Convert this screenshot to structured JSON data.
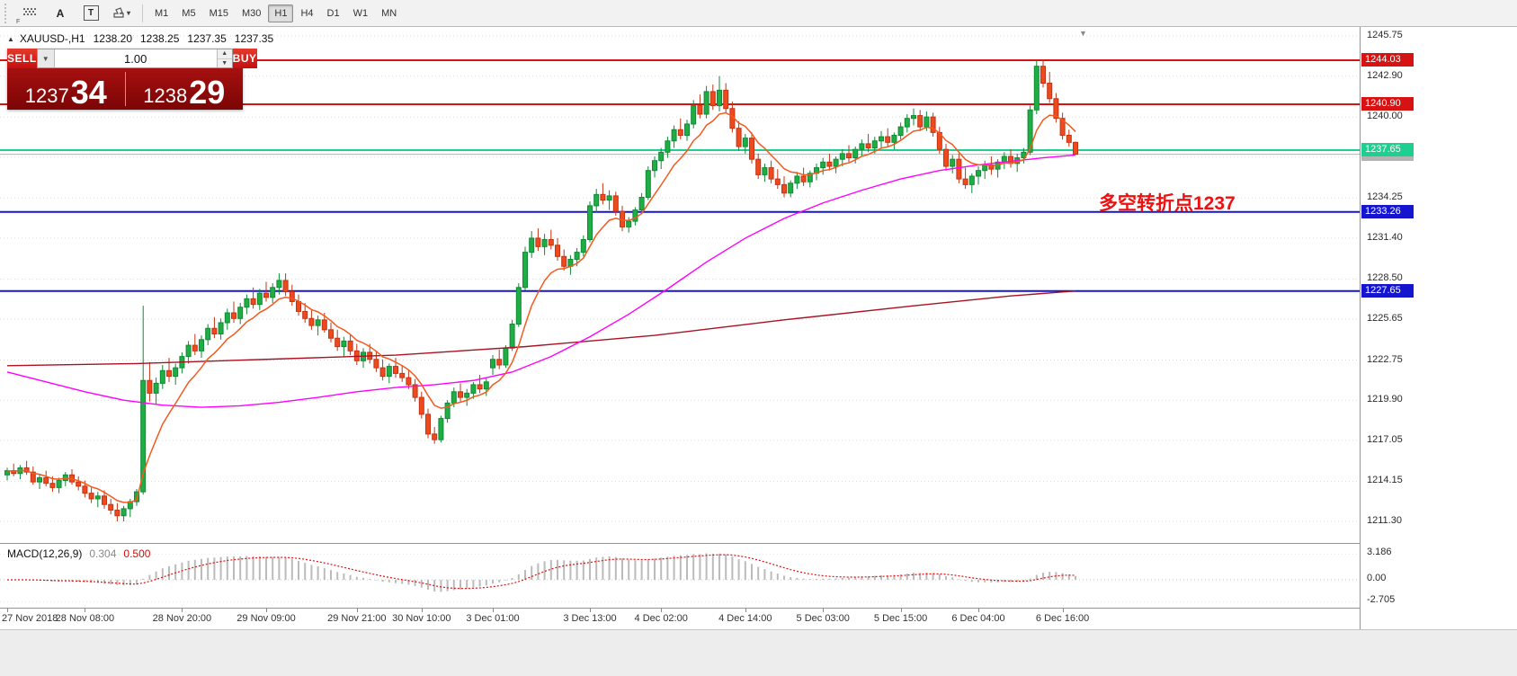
{
  "toolbar": {
    "tools": [
      {
        "name": "pattern-stamp-icon",
        "label": "",
        "sub": "F"
      },
      {
        "name": "arrow-a-tool",
        "label": "A"
      },
      {
        "name": "text-tool",
        "label": "T"
      },
      {
        "name": "draw-tool-dropdown",
        "label": "",
        "chevron": "▾"
      }
    ],
    "timeframes": [
      "M1",
      "M5",
      "M15",
      "M30",
      "H1",
      "H4",
      "D1",
      "W1",
      "MN"
    ],
    "active_timeframe": "H1"
  },
  "chart": {
    "header": {
      "expand_icon": "▲",
      "symbol": "XAUUSD-,H1",
      "open": "1238.20",
      "high": "1238.25",
      "low": "1237.35",
      "close": "1237.35"
    },
    "trade_panel": {
      "sell_label": "SELL",
      "buy_label": "BUY",
      "volume": "1.00",
      "bid_big": "1237",
      "bid_frac": "34",
      "ask_big": "1238",
      "ask_frac": "29"
    },
    "annotation": "多空转折点1237",
    "shift_marker": "▼",
    "levels": [
      {
        "price": 1244.03,
        "label": "1244.03",
        "color": "#d61212",
        "width": 2
      },
      {
        "price": 1240.9,
        "label": "1240.90",
        "color": "#d61212",
        "width": 2
      },
      {
        "price": 1237.65,
        "label": "1237.65",
        "color": "#1ecf8f",
        "width": 2
      },
      {
        "price": 1237.35,
        "label": "1237.35",
        "color": "#b4b4b4",
        "width": 1
      },
      {
        "price": 1233.26,
        "label": "1233.26",
        "color": "#1515cf",
        "width": 2
      },
      {
        "price": 1227.65,
        "label": "1227.65",
        "color": "#1515cf",
        "width": 2
      }
    ],
    "y_axis": {
      "max": 1245.75,
      "min": 1211.3,
      "ticks": [
        "1245.75",
        "1242.90",
        "1240.00",
        "1237.15",
        "1234.25",
        "1231.40",
        "1228.50",
        "1225.65",
        "1222.75",
        "1219.90",
        "1217.05",
        "1214.15",
        "1211.30"
      ]
    },
    "x_axis": {
      "labels": [
        {
          "text": "27 Nov 2018",
          "i": 0
        },
        {
          "text": "28 Nov 08:00",
          "i": 12
        },
        {
          "text": "28 Nov 20:00",
          "i": 27
        },
        {
          "text": "29 Nov 09:00",
          "i": 40
        },
        {
          "text": "29 Nov 21:00",
          "i": 54
        },
        {
          "text": "30 Nov 10:00",
          "i": 64
        },
        {
          "text": "3 Dec 01:00",
          "i": 75
        },
        {
          "text": "3 Dec 13:00",
          "i": 90
        },
        {
          "text": "4 Dec 02:00",
          "i": 101
        },
        {
          "text": "4 Dec 14:00",
          "i": 114
        },
        {
          "text": "5 Dec 03:00",
          "i": 126
        },
        {
          "text": "5 Dec 15:00",
          "i": 138
        },
        {
          "text": "6 Dec 04:00",
          "i": 150
        },
        {
          "text": "6 Dec 16:00",
          "i": 163
        }
      ]
    },
    "colors": {
      "up_fill": "#1fae45",
      "up_stroke": "#0e8a33",
      "down_fill": "#ef4a1e",
      "down_stroke": "#c23413",
      "grid": "#d9d9d9",
      "ma_fast": "#f25a1e",
      "ma_mid": "#ff00ff",
      "ma_slow": "#aa1122",
      "macd_hist": "#bbbbbb",
      "macd_signal": "#e01010"
    }
  },
  "macd": {
    "label": "MACD(12,26,9)",
    "value_main": "0.304",
    "value_signal": "0.500",
    "fast": 12,
    "slow": 26,
    "signal": 9,
    "axis_labels": [
      {
        "text": "3.186",
        "v": 3.186
      },
      {
        "text": "0.00",
        "v": 0.0
      },
      {
        "text": "-2.705",
        "v": -2.705
      }
    ]
  },
  "chart_data": {
    "type": "candlestick",
    "title": "XAUUSD- H1",
    "symbol": "XAUUSD",
    "timeframe": "H1",
    "ylim": [
      1211.3,
      1245.75
    ],
    "ma_fast_period": 8,
    "ma_mid_points": [
      [
        0,
        1221.9
      ],
      [
        6,
        1221.2
      ],
      [
        12,
        1220.5
      ],
      [
        18,
        1219.9
      ],
      [
        24,
        1219.55
      ],
      [
        30,
        1219.4
      ],
      [
        36,
        1219.5
      ],
      [
        42,
        1219.75
      ],
      [
        48,
        1220.1
      ],
      [
        54,
        1220.5
      ],
      [
        60,
        1220.8
      ],
      [
        66,
        1221.0
      ],
      [
        72,
        1221.3
      ],
      [
        78,
        1221.9
      ],
      [
        84,
        1223.0
      ],
      [
        90,
        1224.4
      ],
      [
        96,
        1226.0
      ],
      [
        102,
        1227.8
      ],
      [
        108,
        1229.7
      ],
      [
        114,
        1231.4
      ],
      [
        120,
        1232.8
      ],
      [
        126,
        1233.9
      ],
      [
        132,
        1234.8
      ],
      [
        138,
        1235.6
      ],
      [
        144,
        1236.2
      ],
      [
        150,
        1236.6
      ],
      [
        156,
        1236.9
      ],
      [
        160,
        1237.1
      ],
      [
        165,
        1237.3
      ]
    ],
    "ma_slow_points": [
      [
        0,
        1222.35
      ],
      [
        20,
        1222.5
      ],
      [
        40,
        1222.8
      ],
      [
        60,
        1223.1
      ],
      [
        80,
        1223.7
      ],
      [
        100,
        1224.5
      ],
      [
        120,
        1225.6
      ],
      [
        140,
        1226.6
      ],
      [
        155,
        1227.3
      ],
      [
        165,
        1227.65
      ]
    ],
    "candles": [
      [
        1214.6,
        1215.1,
        1214.2,
        1214.9
      ],
      [
        1214.9,
        1215.4,
        1214.5,
        1214.7
      ],
      [
        1214.7,
        1215.3,
        1214.3,
        1215.1
      ],
      [
        1215.1,
        1215.6,
        1214.6,
        1214.8
      ],
      [
        1214.8,
        1215.2,
        1213.9,
        1214.1
      ],
      [
        1214.1,
        1214.6,
        1213.6,
        1214.4
      ],
      [
        1214.4,
        1214.9,
        1213.8,
        1214.0
      ],
      [
        1214.0,
        1214.5,
        1213.4,
        1213.7
      ],
      [
        1213.7,
        1214.4,
        1213.3,
        1214.2
      ],
      [
        1214.2,
        1214.8,
        1213.8,
        1214.6
      ],
      [
        1214.6,
        1215.0,
        1213.9,
        1214.1
      ],
      [
        1214.1,
        1214.5,
        1213.5,
        1213.8
      ],
      [
        1213.8,
        1214.2,
        1213.0,
        1213.3
      ],
      [
        1213.3,
        1213.7,
        1212.6,
        1212.9
      ],
      [
        1212.9,
        1213.4,
        1212.3,
        1213.1
      ],
      [
        1213.1,
        1213.5,
        1212.2,
        1212.5
      ],
      [
        1212.5,
        1212.9,
        1211.8,
        1212.1
      ],
      [
        1212.1,
        1212.6,
        1211.3,
        1211.7
      ],
      [
        1211.7,
        1212.4,
        1211.3,
        1212.2
      ],
      [
        1212.2,
        1212.9,
        1211.6,
        1212.7
      ],
      [
        1212.7,
        1213.6,
        1212.4,
        1213.4
      ],
      [
        1213.4,
        1226.6,
        1213.2,
        1221.3
      ],
      [
        1221.3,
        1222.6,
        1219.8,
        1220.4
      ],
      [
        1220.4,
        1221.5,
        1219.6,
        1221.1
      ],
      [
        1221.1,
        1222.4,
        1220.7,
        1222.0
      ],
      [
        1222.0,
        1222.9,
        1221.2,
        1221.6
      ],
      [
        1221.6,
        1222.5,
        1221.0,
        1222.2
      ],
      [
        1222.2,
        1223.3,
        1221.8,
        1223.0
      ],
      [
        1223.0,
        1224.1,
        1222.5,
        1223.8
      ],
      [
        1223.8,
        1224.6,
        1223.1,
        1223.4
      ],
      [
        1223.4,
        1224.5,
        1222.9,
        1224.2
      ],
      [
        1224.2,
        1225.3,
        1223.8,
        1225.0
      ],
      [
        1225.0,
        1225.8,
        1224.3,
        1224.6
      ],
      [
        1224.6,
        1225.7,
        1224.2,
        1225.4
      ],
      [
        1225.4,
        1226.4,
        1224.9,
        1226.1
      ],
      [
        1226.1,
        1226.9,
        1225.4,
        1225.7
      ],
      [
        1225.7,
        1226.8,
        1225.3,
        1226.5
      ],
      [
        1226.5,
        1227.4,
        1226.0,
        1227.1
      ],
      [
        1227.1,
        1227.9,
        1226.4,
        1226.7
      ],
      [
        1226.7,
        1227.8,
        1226.3,
        1227.5
      ],
      [
        1227.5,
        1228.3,
        1226.9,
        1227.2
      ],
      [
        1227.2,
        1228.2,
        1226.8,
        1227.9
      ],
      [
        1227.9,
        1228.9,
        1227.4,
        1228.4
      ],
      [
        1228.4,
        1228.9,
        1227.3,
        1227.6
      ],
      [
        1227.6,
        1228.1,
        1226.6,
        1226.9
      ],
      [
        1226.9,
        1227.4,
        1225.9,
        1226.2
      ],
      [
        1226.2,
        1226.8,
        1225.4,
        1225.7
      ],
      [
        1225.7,
        1226.3,
        1224.9,
        1225.2
      ],
      [
        1225.2,
        1225.9,
        1224.5,
        1225.6
      ],
      [
        1225.6,
        1226.1,
        1224.7,
        1224.9
      ],
      [
        1224.9,
        1225.4,
        1224.0,
        1224.3
      ],
      [
        1224.3,
        1224.9,
        1223.4,
        1223.7
      ],
      [
        1223.7,
        1224.4,
        1223.0,
        1224.1
      ],
      [
        1224.1,
        1224.6,
        1223.1,
        1223.4
      ],
      [
        1223.4,
        1223.9,
        1222.4,
        1222.7
      ],
      [
        1222.7,
        1223.6,
        1222.2,
        1223.3
      ],
      [
        1223.3,
        1223.9,
        1222.5,
        1222.8
      ],
      [
        1222.8,
        1223.4,
        1221.9,
        1222.2
      ],
      [
        1222.2,
        1222.8,
        1221.3,
        1221.6
      ],
      [
        1221.6,
        1222.5,
        1221.1,
        1222.3
      ],
      [
        1222.3,
        1222.9,
        1221.5,
        1221.8
      ],
      [
        1221.8,
        1222.4,
        1221.2,
        1221.5
      ],
      [
        1221.5,
        1222.0,
        1220.7,
        1221.0
      ],
      [
        1221.0,
        1221.4,
        1219.8,
        1220.1
      ],
      [
        1220.1,
        1220.5,
        1218.6,
        1218.9
      ],
      [
        1218.9,
        1219.3,
        1217.2,
        1217.5
      ],
      [
        1217.5,
        1218.0,
        1216.8,
        1217.1
      ],
      [
        1217.1,
        1218.8,
        1216.9,
        1218.6
      ],
      [
        1218.6,
        1219.9,
        1218.3,
        1219.7
      ],
      [
        1219.7,
        1220.8,
        1219.4,
        1220.5
      ],
      [
        1220.5,
        1221.1,
        1219.8,
        1220.1
      ],
      [
        1220.1,
        1220.7,
        1219.5,
        1220.4
      ],
      [
        1220.4,
        1221.2,
        1220.0,
        1221.0
      ],
      [
        1221.0,
        1221.7,
        1220.4,
        1220.7
      ],
      [
        1220.7,
        1221.5,
        1220.2,
        1221.2
      ],
      [
        1222.2,
        1223.1,
        1221.7,
        1222.8
      ],
      [
        1222.8,
        1223.5,
        1222.1,
        1222.4
      ],
      [
        1222.4,
        1223.8,
        1222.2,
        1223.6
      ],
      [
        1223.6,
        1225.6,
        1223.4,
        1225.3
      ],
      [
        1225.3,
        1228.2,
        1225.1,
        1227.9
      ],
      [
        1227.9,
        1230.8,
        1227.7,
        1230.4
      ],
      [
        1230.4,
        1231.9,
        1230.0,
        1231.4
      ],
      [
        1231.4,
        1232.1,
        1230.5,
        1230.8
      ],
      [
        1230.8,
        1231.7,
        1230.2,
        1231.3
      ],
      [
        1231.3,
        1232.0,
        1230.6,
        1230.9
      ],
      [
        1230.9,
        1231.4,
        1229.8,
        1230.1
      ],
      [
        1230.1,
        1230.6,
        1229.1,
        1229.4
      ],
      [
        1229.4,
        1230.2,
        1228.8,
        1229.9
      ],
      [
        1229.9,
        1230.7,
        1229.4,
        1230.4
      ],
      [
        1230.4,
        1231.6,
        1230.1,
        1231.3
      ],
      [
        1231.3,
        1234.0,
        1231.1,
        1233.7
      ],
      [
        1233.7,
        1234.9,
        1233.2,
        1234.5
      ],
      [
        1234.5,
        1235.3,
        1233.8,
        1234.1
      ],
      [
        1234.1,
        1234.8,
        1233.4,
        1234.4
      ],
      [
        1234.4,
        1234.7,
        1233.0,
        1233.3
      ],
      [
        1233.3,
        1233.7,
        1231.9,
        1232.2
      ],
      [
        1232.2,
        1232.9,
        1231.8,
        1232.6
      ],
      [
        1232.6,
        1233.6,
        1232.3,
        1233.4
      ],
      [
        1233.4,
        1234.6,
        1233.1,
        1234.3
      ],
      [
        1234.3,
        1236.5,
        1234.1,
        1236.2
      ],
      [
        1236.2,
        1237.2,
        1235.7,
        1236.9
      ],
      [
        1236.9,
        1237.8,
        1236.3,
        1237.5
      ],
      [
        1237.5,
        1238.6,
        1237.1,
        1238.3
      ],
      [
        1238.3,
        1239.4,
        1237.8,
        1239.1
      ],
      [
        1239.1,
        1239.9,
        1238.4,
        1238.7
      ],
      [
        1238.7,
        1239.8,
        1238.3,
        1239.5
      ],
      [
        1239.5,
        1241.2,
        1239.2,
        1240.8
      ],
      [
        1240.8,
        1241.6,
        1239.9,
        1240.2
      ],
      [
        1240.2,
        1242.2,
        1239.9,
        1241.8
      ],
      [
        1241.8,
        1242.3,
        1240.5,
        1240.8
      ],
      [
        1240.8,
        1242.9,
        1240.4,
        1241.9
      ],
      [
        1241.9,
        1242.4,
        1240.3,
        1240.6
      ],
      [
        1240.6,
        1241.1,
        1238.9,
        1239.2
      ],
      [
        1239.2,
        1239.7,
        1237.6,
        1237.9
      ],
      [
        1237.9,
        1238.8,
        1237.4,
        1238.5
      ],
      [
        1238.5,
        1238.9,
        1236.7,
        1237.0
      ],
      [
        1237.0,
        1237.4,
        1235.6,
        1235.9
      ],
      [
        1235.9,
        1236.7,
        1235.4,
        1236.4
      ],
      [
        1236.4,
        1236.9,
        1235.3,
        1235.6
      ],
      [
        1235.6,
        1236.3,
        1234.9,
        1235.2
      ],
      [
        1235.2,
        1235.8,
        1234.3,
        1234.6
      ],
      [
        1234.6,
        1235.5,
        1234.3,
        1235.3
      ],
      [
        1235.3,
        1236.1,
        1234.9,
        1235.8
      ],
      [
        1235.8,
        1236.4,
        1235.1,
        1235.4
      ],
      [
        1235.4,
        1236.2,
        1235.0,
        1236.0
      ],
      [
        1236.0,
        1236.7,
        1235.5,
        1236.4
      ],
      [
        1236.4,
        1237.1,
        1235.9,
        1236.8
      ],
      [
        1236.8,
        1237.4,
        1236.2,
        1236.5
      ],
      [
        1236.5,
        1237.2,
        1236.0,
        1237.0
      ],
      [
        1237.0,
        1237.7,
        1236.5,
        1237.4
      ],
      [
        1237.4,
        1238.0,
        1236.8,
        1237.1
      ],
      [
        1237.1,
        1237.9,
        1236.7,
        1237.7
      ],
      [
        1237.7,
        1238.4,
        1237.2,
        1238.1
      ],
      [
        1238.1,
        1238.8,
        1237.5,
        1237.8
      ],
      [
        1237.8,
        1238.6,
        1237.4,
        1238.3
      ],
      [
        1238.3,
        1239.0,
        1237.8,
        1238.6
      ],
      [
        1238.6,
        1239.2,
        1237.9,
        1238.2
      ],
      [
        1238.2,
        1238.9,
        1237.7,
        1238.7
      ],
      [
        1238.7,
        1239.6,
        1238.4,
        1239.3
      ],
      [
        1239.3,
        1240.2,
        1238.9,
        1239.9
      ],
      [
        1239.9,
        1240.6,
        1239.4,
        1240.1
      ],
      [
        1240.1,
        1240.5,
        1239.0,
        1239.3
      ],
      [
        1239.3,
        1240.4,
        1239.0,
        1240.0
      ],
      [
        1240.0,
        1240.3,
        1238.6,
        1238.9
      ],
      [
        1238.9,
        1239.3,
        1237.4,
        1237.7
      ],
      [
        1237.7,
        1238.1,
        1236.2,
        1236.5
      ],
      [
        1236.5,
        1237.3,
        1236.0,
        1237.0
      ],
      [
        1237.0,
        1237.4,
        1235.3,
        1235.6
      ],
      [
        1235.6,
        1236.4,
        1234.9,
        1235.2
      ],
      [
        1235.2,
        1236.0,
        1234.6,
        1235.8
      ],
      [
        1235.8,
        1236.5,
        1235.2,
        1236.2
      ],
      [
        1236.2,
        1236.9,
        1235.6,
        1236.6
      ],
      [
        1236.6,
        1237.2,
        1235.9,
        1236.3
      ],
      [
        1236.3,
        1237.0,
        1235.7,
        1236.8
      ],
      [
        1236.8,
        1237.5,
        1236.3,
        1237.2
      ],
      [
        1237.2,
        1237.7,
        1236.4,
        1236.7
      ],
      [
        1236.7,
        1237.4,
        1236.1,
        1237.1
      ],
      [
        1237.1,
        1237.8,
        1236.7,
        1237.5
      ],
      [
        1237.5,
        1240.8,
        1237.3,
        1240.5
      ],
      [
        1240.5,
        1244.03,
        1240.2,
        1243.6
      ],
      [
        1243.6,
        1244.0,
        1242.1,
        1242.4
      ],
      [
        1242.4,
        1243.2,
        1241.0,
        1241.3
      ],
      [
        1241.3,
        1241.7,
        1239.6,
        1239.9
      ],
      [
        1239.9,
        1240.3,
        1238.4,
        1238.7
      ],
      [
        1238.7,
        1239.1,
        1237.9,
        1238.2
      ],
      [
        1238.2,
        1238.25,
        1237.35,
        1237.35
      ]
    ]
  }
}
